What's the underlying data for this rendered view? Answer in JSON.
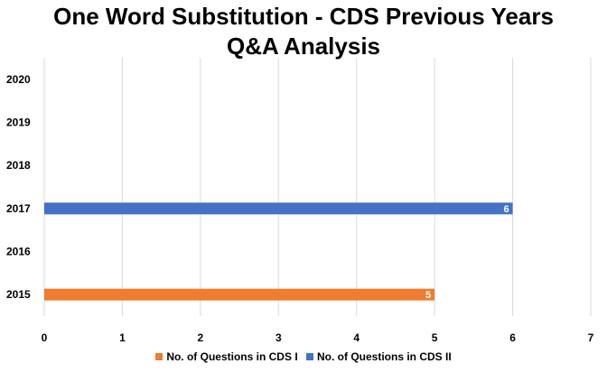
{
  "chart_data": {
    "type": "bar",
    "orientation": "horizontal",
    "title": [
      "One Word Substitution - CDS Previous Years",
      "Q&A Analysis"
    ],
    "categories": [
      "2015",
      "2016",
      "2017",
      "2018",
      "2019",
      "2020"
    ],
    "series": [
      {
        "name": "No. of Questions in CDS I",
        "color": "#ED7D31",
        "values": [
          5,
          null,
          null,
          null,
          null,
          null
        ]
      },
      {
        "name": "No. of Questions in CDS II",
        "color": "#4472C4",
        "values": [
          null,
          null,
          6,
          null,
          null,
          null
        ]
      }
    ],
    "xlim": [
      0,
      7
    ],
    "xticks": [
      "0",
      "1",
      "2",
      "3",
      "4",
      "5",
      "6",
      "7"
    ],
    "grid": "vertical",
    "data_labels": true,
    "legend": "bottom",
    "gridline_color": "#D9D9D9"
  }
}
